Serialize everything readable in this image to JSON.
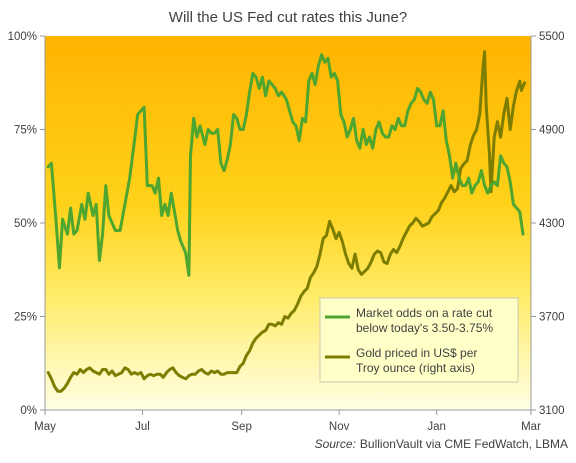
{
  "chart_data": {
    "type": "line",
    "title": "Will the US Fed cut rates this June?",
    "source_label": "Source:",
    "source_text": "BullionVault via CME FedWatch, LBMA",
    "x_axis": {
      "ticks": [
        "May",
        "Jul",
        "Sep",
        "Nov",
        "Jan",
        "Mar"
      ],
      "tick_days": [
        0,
        61,
        123,
        184,
        245,
        304
      ]
    },
    "y_left": {
      "range": [
        0,
        100
      ],
      "ticks": [
        "0%",
        "25%",
        "50%",
        "75%",
        "100%"
      ],
      "tick_values": [
        0,
        25,
        50,
        75,
        100
      ]
    },
    "y_right": {
      "range": [
        3100,
        5500
      ],
      "ticks": [
        "3100",
        "3700",
        "4300",
        "4900",
        "5500"
      ],
      "tick_values": [
        3100,
        3700,
        4300,
        4900,
        5500
      ]
    },
    "legend_placement": "bottom-right",
    "grid": "none",
    "background_gradient": [
      "#ffb400",
      "#ffffe6"
    ],
    "series": [
      {
        "name": "Market odds on a rate cut below today's 3.50-3.75%",
        "legend_lines": [
          "Market odds on a rate cut",
          "below today's 3.50-3.75%"
        ],
        "axis": "left",
        "color": "#4ea52f",
        "points": [
          [
            2,
            65
          ],
          [
            4,
            66
          ],
          [
            7,
            50
          ],
          [
            9,
            38
          ],
          [
            11,
            51
          ],
          [
            14,
            47
          ],
          [
            16,
            54
          ],
          [
            18,
            47
          ],
          [
            20,
            48
          ],
          [
            23,
            55
          ],
          [
            25,
            51
          ],
          [
            27,
            58
          ],
          [
            30,
            52
          ],
          [
            32,
            55
          ],
          [
            34,
            40
          ],
          [
            36,
            47
          ],
          [
            38,
            60
          ],
          [
            40,
            52
          ],
          [
            42,
            50
          ],
          [
            44,
            48
          ],
          [
            47,
            48
          ],
          [
            50,
            55
          ],
          [
            53,
            62
          ],
          [
            56,
            72
          ],
          [
            58,
            79
          ],
          [
            60,
            80
          ],
          [
            62,
            81
          ],
          [
            64,
            60
          ],
          [
            67,
            60
          ],
          [
            69,
            58
          ],
          [
            71,
            62
          ],
          [
            73,
            52
          ],
          [
            75,
            55
          ],
          [
            77,
            52
          ],
          [
            79,
            58
          ],
          [
            81,
            53
          ],
          [
            83,
            48
          ],
          [
            85,
            45
          ],
          [
            88,
            42
          ],
          [
            90,
            36
          ],
          [
            91,
            68
          ],
          [
            93,
            78
          ],
          [
            95,
            73
          ],
          [
            97,
            76
          ],
          [
            100,
            71
          ],
          [
            102,
            75
          ],
          [
            104,
            74
          ],
          [
            106,
            74
          ],
          [
            108,
            75
          ],
          [
            110,
            66
          ],
          [
            112,
            64
          ],
          [
            114,
            67
          ],
          [
            116,
            71
          ],
          [
            118,
            79
          ],
          [
            120,
            78
          ],
          [
            122,
            75
          ],
          [
            124,
            75
          ],
          [
            126,
            79
          ],
          [
            128,
            85
          ],
          [
            130,
            90
          ],
          [
            132,
            89
          ],
          [
            134,
            86
          ],
          [
            136,
            89
          ],
          [
            138,
            84
          ],
          [
            140,
            88
          ],
          [
            142,
            87
          ],
          [
            144,
            86
          ],
          [
            146,
            84
          ],
          [
            148,
            85
          ],
          [
            151,
            83
          ],
          [
            153,
            80
          ],
          [
            155,
            77
          ],
          [
            157,
            76
          ],
          [
            159,
            72
          ],
          [
            161,
            78
          ],
          [
            163,
            77
          ],
          [
            165,
            88
          ],
          [
            167,
            90
          ],
          [
            169,
            87
          ],
          [
            171,
            92
          ],
          [
            173,
            95
          ],
          [
            175,
            93
          ],
          [
            177,
            94
          ],
          [
            179,
            89
          ],
          [
            181,
            90
          ],
          [
            183,
            88
          ],
          [
            185,
            79
          ],
          [
            187,
            77
          ],
          [
            189,
            73
          ],
          [
            191,
            75
          ],
          [
            193,
            78
          ],
          [
            195,
            72
          ],
          [
            197,
            70
          ],
          [
            199,
            75
          ],
          [
            201,
            71
          ],
          [
            203,
            73
          ],
          [
            205,
            70
          ],
          [
            207,
            75
          ],
          [
            209,
            77
          ],
          [
            211,
            74
          ],
          [
            213,
            73
          ],
          [
            215,
            73
          ],
          [
            217,
            76
          ],
          [
            219,
            75
          ],
          [
            221,
            78
          ],
          [
            223,
            76
          ],
          [
            225,
            76
          ],
          [
            227,
            80
          ],
          [
            229,
            82
          ],
          [
            231,
            83
          ],
          [
            233,
            86
          ],
          [
            235,
            85
          ],
          [
            237,
            83
          ],
          [
            239,
            82
          ],
          [
            241,
            85
          ],
          [
            243,
            83
          ],
          [
            245,
            76
          ],
          [
            247,
            76
          ],
          [
            249,
            80
          ],
          [
            251,
            72
          ],
          [
            253,
            68
          ],
          [
            255,
            62
          ],
          [
            257,
            66
          ],
          [
            259,
            62
          ],
          [
            261,
            60
          ],
          [
            263,
            60
          ],
          [
            265,
            62
          ],
          [
            267,
            58
          ],
          [
            269,
            60
          ],
          [
            271,
            61
          ],
          [
            273,
            64
          ],
          [
            275,
            60
          ],
          [
            277,
            58
          ],
          [
            279,
            60
          ],
          [
            281,
            61
          ],
          [
            283,
            60
          ],
          [
            285,
            68
          ],
          [
            287,
            66
          ],
          [
            289,
            65
          ],
          [
            291,
            61
          ],
          [
            293,
            55
          ],
          [
            295,
            54
          ],
          [
            297,
            53
          ],
          [
            299,
            47
          ]
        ]
      },
      {
        "name": "Gold priced in US$ per Troy ounce (right axis)",
        "legend_lines": [
          "Gold priced in US$ per",
          "Troy ounce (right axis)"
        ],
        "axis": "right",
        "color": "#7d7d00",
        "points": [
          [
            2,
            3340
          ],
          [
            4,
            3300
          ],
          [
            6,
            3250
          ],
          [
            8,
            3220
          ],
          [
            10,
            3220
          ],
          [
            12,
            3240
          ],
          [
            14,
            3270
          ],
          [
            16,
            3310
          ],
          [
            18,
            3340
          ],
          [
            20,
            3330
          ],
          [
            22,
            3360
          ],
          [
            24,
            3340
          ],
          [
            26,
            3360
          ],
          [
            28,
            3370
          ],
          [
            30,
            3350
          ],
          [
            32,
            3340
          ],
          [
            34,
            3330
          ],
          [
            36,
            3360
          ],
          [
            38,
            3360
          ],
          [
            40,
            3330
          ],
          [
            42,
            3350
          ],
          [
            44,
            3320
          ],
          [
            46,
            3330
          ],
          [
            48,
            3340
          ],
          [
            50,
            3370
          ],
          [
            52,
            3360
          ],
          [
            54,
            3330
          ],
          [
            56,
            3340
          ],
          [
            58,
            3330
          ],
          [
            60,
            3340
          ],
          [
            62,
            3300
          ],
          [
            64,
            3320
          ],
          [
            66,
            3330
          ],
          [
            68,
            3320
          ],
          [
            70,
            3330
          ],
          [
            72,
            3330
          ],
          [
            74,
            3310
          ],
          [
            76,
            3340
          ],
          [
            78,
            3360
          ],
          [
            80,
            3370
          ],
          [
            82,
            3340
          ],
          [
            84,
            3320
          ],
          [
            86,
            3310
          ],
          [
            88,
            3300
          ],
          [
            90,
            3320
          ],
          [
            92,
            3330
          ],
          [
            94,
            3330
          ],
          [
            96,
            3350
          ],
          [
            98,
            3360
          ],
          [
            100,
            3340
          ],
          [
            102,
            3330
          ],
          [
            104,
            3350
          ],
          [
            106,
            3340
          ],
          [
            108,
            3350
          ],
          [
            110,
            3330
          ],
          [
            112,
            3330
          ],
          [
            114,
            3340
          ],
          [
            116,
            3340
          ],
          [
            118,
            3340
          ],
          [
            120,
            3340
          ],
          [
            122,
            3380
          ],
          [
            124,
            3400
          ],
          [
            126,
            3450
          ],
          [
            128,
            3480
          ],
          [
            130,
            3530
          ],
          [
            132,
            3560
          ],
          [
            134,
            3580
          ],
          [
            136,
            3600
          ],
          [
            138,
            3610
          ],
          [
            140,
            3650
          ],
          [
            142,
            3650
          ],
          [
            144,
            3640
          ],
          [
            146,
            3660
          ],
          [
            148,
            3650
          ],
          [
            150,
            3700
          ],
          [
            152,
            3690
          ],
          [
            154,
            3720
          ],
          [
            156,
            3740
          ],
          [
            158,
            3780
          ],
          [
            160,
            3830
          ],
          [
            162,
            3860
          ],
          [
            164,
            3880
          ],
          [
            166,
            3950
          ],
          [
            168,
            3980
          ],
          [
            170,
            4020
          ],
          [
            172,
            4100
          ],
          [
            174,
            4200
          ],
          [
            176,
            4220
          ],
          [
            178,
            4310
          ],
          [
            180,
            4260
          ],
          [
            182,
            4200
          ],
          [
            184,
            4240
          ],
          [
            186,
            4180
          ],
          [
            188,
            4100
          ],
          [
            190,
            4040
          ],
          [
            192,
            4010
          ],
          [
            194,
            4100
          ],
          [
            196,
            4000
          ],
          [
            198,
            3970
          ],
          [
            200,
            3990
          ],
          [
            202,
            4010
          ],
          [
            204,
            4050
          ],
          [
            206,
            4100
          ],
          [
            208,
            4120
          ],
          [
            210,
            4110
          ],
          [
            212,
            4050
          ],
          [
            214,
            4040
          ],
          [
            216,
            4100
          ],
          [
            218,
            4130
          ],
          [
            220,
            4110
          ],
          [
            222,
            4150
          ],
          [
            224,
            4200
          ],
          [
            226,
            4240
          ],
          [
            228,
            4280
          ],
          [
            230,
            4300
          ],
          [
            232,
            4330
          ],
          [
            234,
            4310
          ],
          [
            236,
            4280
          ],
          [
            238,
            4290
          ],
          [
            240,
            4300
          ],
          [
            242,
            4340
          ],
          [
            244,
            4360
          ],
          [
            246,
            4380
          ],
          [
            248,
            4430
          ],
          [
            250,
            4460
          ],
          [
            252,
            4500
          ],
          [
            254,
            4540
          ],
          [
            256,
            4500
          ],
          [
            258,
            4520
          ],
          [
            260,
            4650
          ],
          [
            262,
            4680
          ],
          [
            264,
            4700
          ],
          [
            266,
            4800
          ],
          [
            268,
            4860
          ],
          [
            270,
            4900
          ],
          [
            272,
            5000
          ],
          [
            274,
            5300
          ],
          [
            275,
            5400
          ],
          [
            276,
            5050
          ],
          [
            278,
            4750
          ],
          [
            279,
            4500
          ],
          [
            281,
            4850
          ],
          [
            283,
            4950
          ],
          [
            285,
            4850
          ],
          [
            287,
            5000
          ],
          [
            289,
            5100
          ],
          [
            291,
            4900
          ],
          [
            293,
            5050
          ],
          [
            295,
            5150
          ],
          [
            297,
            5210
          ],
          [
            298,
            5150
          ],
          [
            300,
            5200
          ]
        ]
      }
    ]
  }
}
